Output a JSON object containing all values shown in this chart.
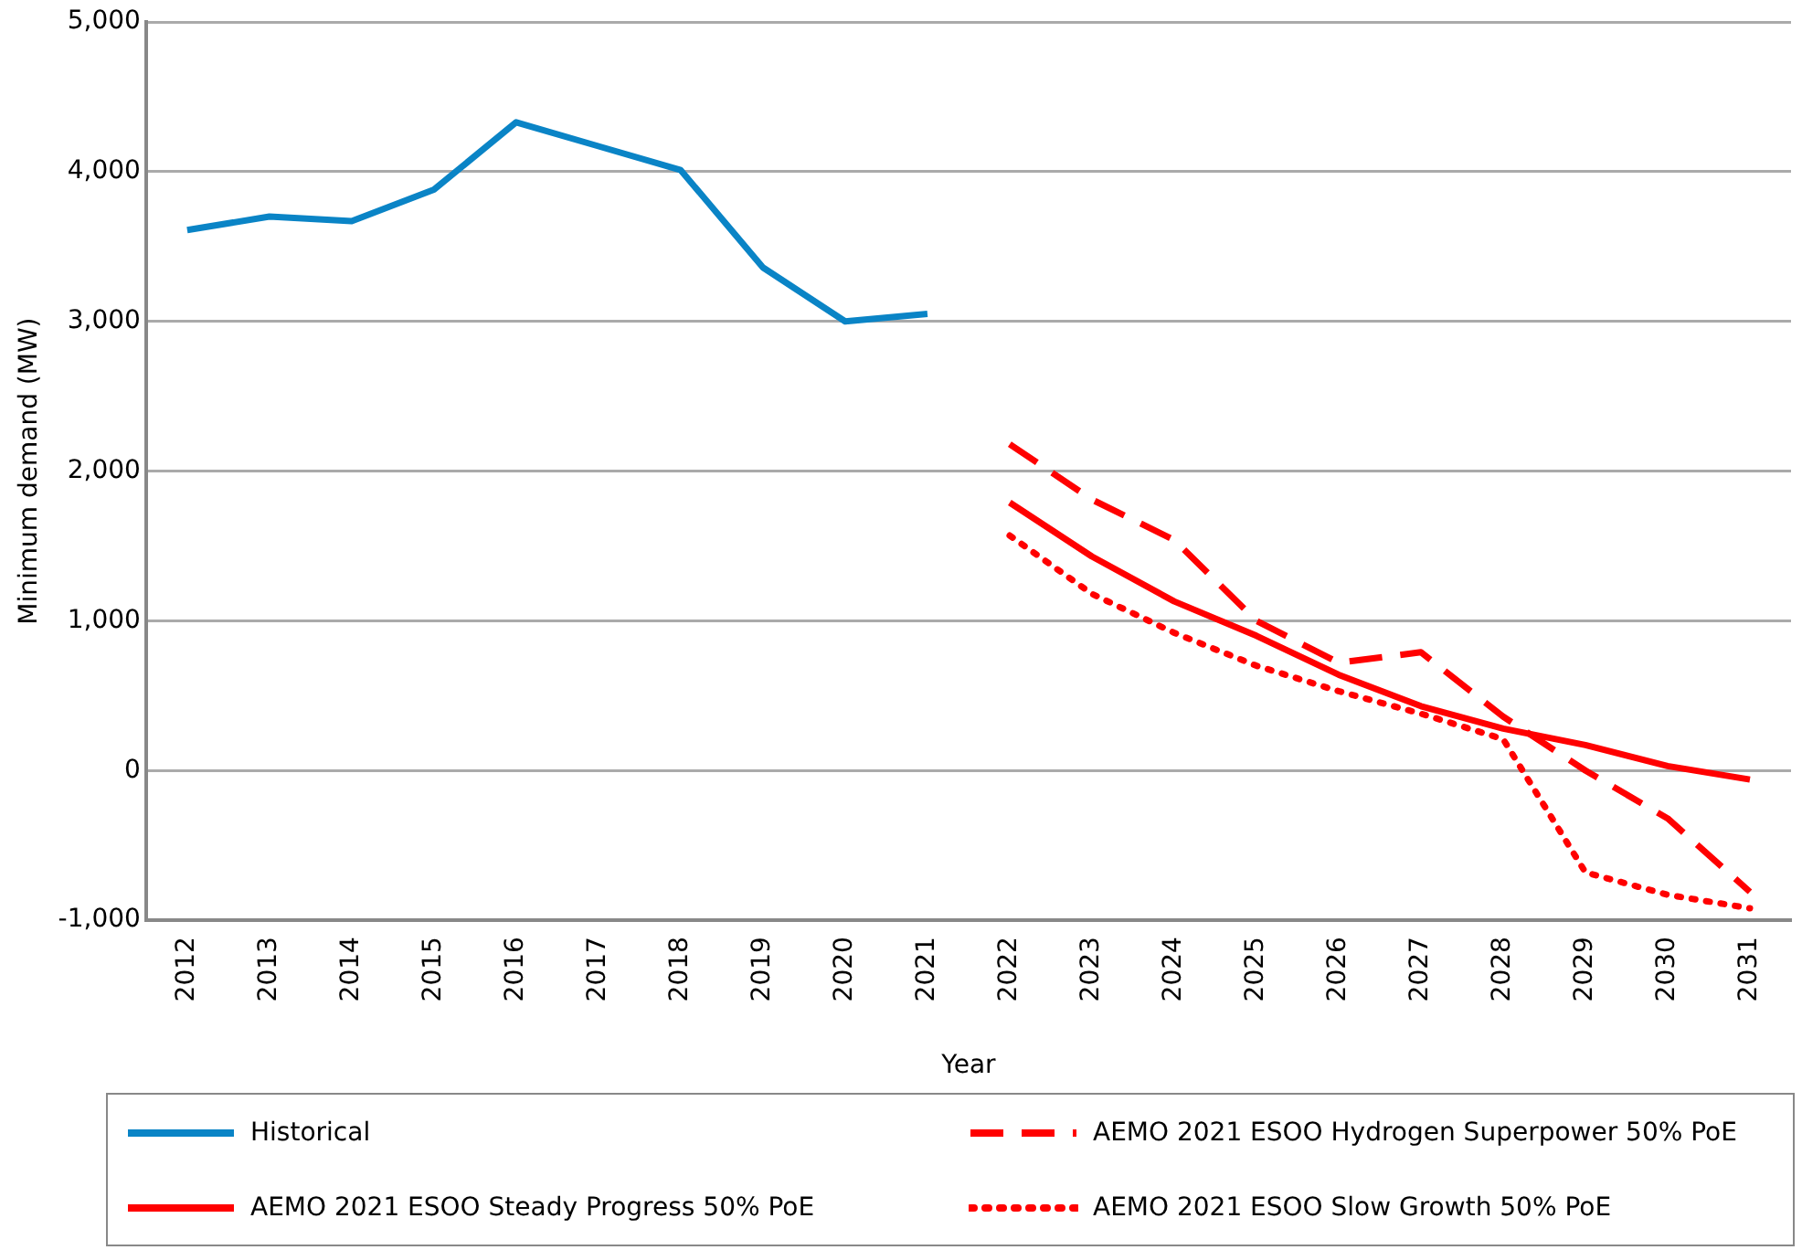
{
  "chart_data": {
    "type": "line",
    "xlabel": "Year",
    "ylabel": "Minimum demand (MW)",
    "categories": [
      "2012",
      "2013",
      "2014",
      "2015",
      "2016",
      "2017",
      "2018",
      "2019",
      "2020",
      "2021",
      "2022",
      "2023",
      "2024",
      "2025",
      "2026",
      "2027",
      "2028",
      "2029",
      "2030",
      "2031"
    ],
    "series": [
      {
        "name": "Historical",
        "color": "#0a84c6",
        "line_style": "solid",
        "values": [
          3610,
          3700,
          3670,
          3880,
          4330,
          4170,
          4010,
          3360,
          3000,
          3050,
          null,
          null,
          null,
          null,
          null,
          null,
          null,
          null,
          null,
          null
        ]
      },
      {
        "name": "AEMO 2021 ESOO Hydrogen Superpower 50% PoE",
        "color": "#ff0000",
        "line_style": "dashed",
        "values": [
          null,
          null,
          null,
          null,
          null,
          null,
          null,
          null,
          null,
          null,
          2180,
          1810,
          1540,
          1000,
          720,
          790,
          360,
          0,
          -320,
          -810
        ]
      },
      {
        "name": "AEMO 2021 ESOO Steady Progress 50% PoE",
        "color": "#ff0000",
        "line_style": "solid",
        "values": [
          null,
          null,
          null,
          null,
          null,
          null,
          null,
          null,
          null,
          null,
          1790,
          1430,
          1130,
          900,
          640,
          430,
          280,
          170,
          30,
          -60
        ]
      },
      {
        "name": "AEMO 2021 ESOO Slow Growth 50% PoE",
        "color": "#ff0000",
        "line_style": "dotted",
        "values": [
          null,
          null,
          null,
          null,
          null,
          null,
          null,
          null,
          null,
          null,
          1570,
          1180,
          920,
          700,
          530,
          380,
          210,
          -680,
          -830,
          -920
        ]
      }
    ],
    "ylim": [
      -1000,
      5000
    ],
    "yticks": [
      {
        "value": -1000,
        "label": "-1,000"
      },
      0,
      {
        "value": 1000,
        "label": "1,000"
      },
      {
        "value": 2000,
        "label": "2,000"
      },
      {
        "value": 3000,
        "label": "3,000"
      },
      {
        "value": 4000,
        "label": "4,000"
      },
      {
        "value": 5000,
        "label": "5,000"
      }
    ],
    "grid": "y",
    "legend": "bottom"
  }
}
